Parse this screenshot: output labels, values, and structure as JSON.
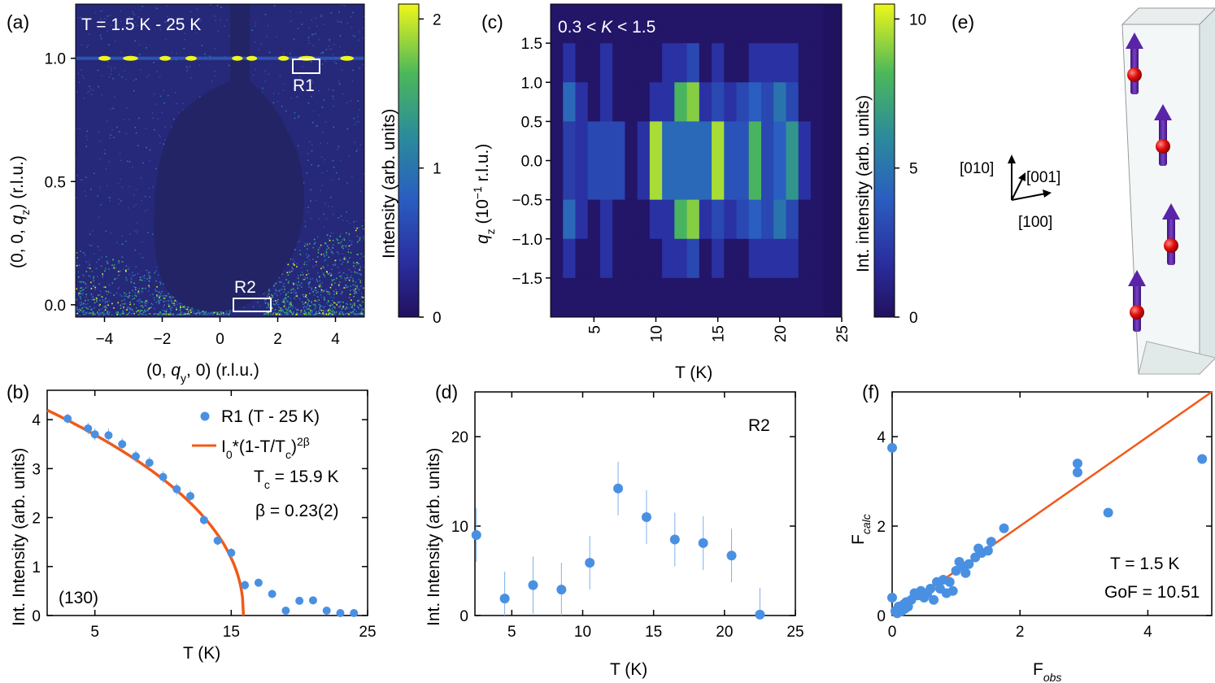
{
  "panels": {
    "a": {
      "label": "(a)",
      "title": "T = 1.5 K - 25 K",
      "xlabel_pre": "(0, ",
      "xlabel_var": "q",
      "xlabel_sub": "y",
      "xlabel_post": ", 0) (r.l.u.)",
      "ylabel_pre": "(0, 0, ",
      "ylabel_var": "q",
      "ylabel_sub": "z",
      "ylabel_post": ") (r.l.u.)",
      "xticks": [
        "−4",
        "−2",
        "0",
        "2",
        "4"
      ],
      "yticks": [
        "0.0",
        "0.5",
        "1.0"
      ],
      "region_labels": [
        "R1",
        "R2"
      ],
      "colorbar_label": "Intensity (arb. units)",
      "colorbar_ticks": [
        "0",
        "1",
        "2"
      ]
    },
    "b": {
      "label": "(b)",
      "xlabel": "T (K)",
      "ylabel": "Int. Intensity (arb. units)",
      "xticks": [
        "5",
        "15",
        "25"
      ],
      "yticks": [
        "0",
        "1",
        "2",
        "3",
        "4"
      ],
      "legend_points": "R1 (T - 25 K)",
      "legend_fit_base": "I",
      "legend_fit_sub": "0",
      "legend_fit_mid": "*(1-T/T",
      "legend_fit_sub2": "c",
      "legend_fit_end": ")",
      "legend_fit_sup": "2β",
      "tc_text": "T",
      "tc_sub": "c",
      "tc_value": " = 15.9 K",
      "beta_text": "β = 0.23(2)",
      "reflection": "(130)"
    },
    "c": {
      "label": "(c)",
      "title_pre": "0.3 < ",
      "title_var": "K",
      "title_post": " < 1.5",
      "xlabel": "T (K)",
      "ylabel_var": "q",
      "ylabel_sub": "z",
      "ylabel_mid": " (10",
      "ylabel_sup": "−1",
      "ylabel_post": " r.l.u.)",
      "xticks": [
        "5",
        "10",
        "15",
        "20",
        "25"
      ],
      "yticks": [
        "1.5",
        "1.0",
        "0.5",
        "0.0",
        "−0.5",
        "−1.0",
        "−1.5"
      ],
      "colorbar_label": "Int. intensity (arb. units)",
      "colorbar_ticks": [
        "0",
        "5",
        "10"
      ]
    },
    "d": {
      "label": "(d)",
      "xlabel": "T (K)",
      "ylabel": "Int. Intensity (arb. units)",
      "xticks": [
        "5",
        "10",
        "15",
        "20",
        "25"
      ],
      "yticks": [
        "0",
        "10",
        "20"
      ],
      "region": "R2"
    },
    "e": {
      "label": "(e)",
      "axes": [
        "[010]",
        "[001]",
        "[100]"
      ]
    },
    "f": {
      "label": "(f)",
      "xlabel_base": "F",
      "xlabel_sub": "obs",
      "ylabel_base": "F",
      "ylabel_sub": "calc",
      "xticks": [
        "0",
        "2",
        "4"
      ],
      "yticks": [
        "0",
        "2",
        "4"
      ],
      "annot1": "T = 1.5 K",
      "annot2": "GoF = 10.51"
    }
  },
  "colors": {
    "points": "#4a90e2",
    "fit": "#f05a1a",
    "map_background": "#26287a",
    "map_hole": "#232466"
  },
  "chart_data": [
    {
      "id": "b",
      "type": "scatter",
      "title": "",
      "xlabel": "T (K)",
      "ylabel": "Int. Intensity (arb. units)",
      "xlim": [
        1.5,
        25
      ],
      "ylim": [
        0,
        4.6
      ],
      "series": [
        {
          "name": "R1 (T - 25 K)",
          "x": [
            3,
            4.5,
            5,
            6,
            7,
            8,
            9,
            10,
            11,
            12,
            13,
            14,
            15,
            16,
            17,
            18,
            19,
            20,
            21,
            22,
            23,
            24
          ],
          "y": [
            4.02,
            3.82,
            3.7,
            3.68,
            3.5,
            3.25,
            3.12,
            2.83,
            2.58,
            2.44,
            1.95,
            1.53,
            1.28,
            0.62,
            0.67,
            0.44,
            0.1,
            0.3,
            0.31,
            0.1,
            0.05,
            0.05
          ],
          "err": [
            0.1,
            0.12,
            0.12,
            0.14,
            0.12,
            0.12,
            0.12,
            0.12,
            0.12,
            0.12,
            0.1,
            0.1,
            0.1,
            0.1,
            0.06,
            0.06,
            0.05,
            0.05,
            0.05,
            0.05,
            0.05,
            0.05
          ]
        }
      ],
      "fit": {
        "name": "I0*(1-T/Tc)^2β",
        "I0": 4.39,
        "Tc": 15.9,
        "beta": 0.23
      }
    },
    {
      "id": "d",
      "type": "scatter",
      "title": "",
      "xlabel": "T (K)",
      "ylabel": "Int. Intensity (arb. units)",
      "xlim": [
        2.4,
        25
      ],
      "ylim": [
        0,
        25
      ],
      "series": [
        {
          "name": "R2",
          "x": [
            2.5,
            4.5,
            6.5,
            8.5,
            10.5,
            12.5,
            14.5,
            16.5,
            18.5,
            20.5,
            22.5
          ],
          "y": [
            9.0,
            1.9,
            3.4,
            2.9,
            5.9,
            14.2,
            11.0,
            8.5,
            8.1,
            6.7,
            0.1
          ],
          "err": [
            3.0,
            3.0,
            3.2,
            3.0,
            3.0,
            3.0,
            3.0,
            3.0,
            3.0,
            3.0,
            3.0
          ]
        }
      ]
    },
    {
      "id": "f",
      "type": "scatter",
      "title": "",
      "xlabel": "F_obs",
      "ylabel": "F_calc",
      "xlim": [
        0,
        5
      ],
      "ylim": [
        0,
        5
      ],
      "series": [
        {
          "name": "reflections",
          "x": [
            0.0,
            0.0,
            0.05,
            0.08,
            0.1,
            0.12,
            0.15,
            0.18,
            0.2,
            0.22,
            0.25,
            0.3,
            0.35,
            0.4,
            0.45,
            0.5,
            0.55,
            0.6,
            0.65,
            0.7,
            0.75,
            0.8,
            0.85,
            0.9,
            0.95,
            1.0,
            1.05,
            1.1,
            1.15,
            1.2,
            1.3,
            1.35,
            1.4,
            1.5,
            1.55,
            1.75,
            2.9,
            2.9,
            3.38,
            4.85
          ],
          "y": [
            3.75,
            0.4,
            0.1,
            0.05,
            0.2,
            0.15,
            0.1,
            0.25,
            0.15,
            0.3,
            0.2,
            0.35,
            0.5,
            0.45,
            0.55,
            0.4,
            0.5,
            0.6,
            0.35,
            0.75,
            0.6,
            0.8,
            0.5,
            0.75,
            0.55,
            1.0,
            1.2,
            1.1,
            0.95,
            1.15,
            1.3,
            1.5,
            1.4,
            1.45,
            1.65,
            1.95,
            3.4,
            3.2,
            2.3,
            3.5
          ]
        }
      ],
      "fit": {
        "name": "y = x",
        "slope": 1.0
      }
    },
    {
      "id": "c",
      "type": "heatmap",
      "title": "0.3 < K < 1.5",
      "xlabel": "T (K)",
      "ylabel": "q_z (10^-1 r.l.u.)",
      "xlim": [
        1.5,
        25
      ],
      "ylim": [
        -2.0,
        2.0
      ],
      "zlim": [
        0,
        10.5
      ],
      "x_centers": [
        2,
        3,
        4,
        5,
        6,
        7,
        8,
        9,
        10,
        11,
        12,
        13,
        14,
        15,
        16,
        17,
        18,
        19,
        20,
        21,
        22,
        23
      ],
      "y_centers": [
        1.75,
        1.25,
        0.75,
        0.25,
        -0.25,
        -0.75,
        -1.25,
        -1.75
      ],
      "values": [
        [
          0.3,
          0.3,
          0.3,
          0.3,
          0.3,
          0.3,
          0.3,
          0.3,
          0.3,
          0.3,
          0.3,
          0.3,
          0.3,
          0.3,
          0.3,
          0.3,
          0.3,
          0.3,
          0.3,
          0.3,
          0.3,
          0.3
        ],
        [
          0.3,
          2.0,
          0.3,
          0.3,
          2.0,
          0.3,
          0.3,
          0.3,
          0.3,
          2.0,
          2.0,
          3.0,
          0.3,
          2.0,
          0.3,
          0.3,
          2.0,
          2.0,
          2.0,
          2.0,
          0.3,
          0.3
        ],
        [
          0.3,
          4.5,
          2.0,
          0.3,
          2.0,
          0.3,
          0.3,
          0.3,
          2.0,
          2.0,
          8.0,
          9.0,
          2.0,
          3.0,
          2.0,
          3.0,
          4.0,
          3.0,
          5.0,
          3.0,
          0.3,
          0.3
        ],
        [
          0.3,
          2.5,
          2.0,
          3.0,
          3.0,
          3.0,
          0.3,
          2.0,
          9.5,
          4.5,
          4.5,
          4.5,
          4.5,
          9.5,
          3.5,
          3.5,
          8.0,
          3.0,
          4.0,
          6.5,
          2.0,
          0.3
        ],
        [
          0.3,
          2.5,
          2.0,
          3.0,
          3.0,
          3.0,
          0.3,
          2.0,
          9.5,
          4.5,
          4.5,
          4.5,
          4.5,
          9.5,
          3.5,
          3.5,
          8.0,
          3.0,
          4.0,
          6.5,
          2.0,
          0.3
        ],
        [
          0.3,
          4.5,
          2.0,
          0.3,
          2.0,
          0.3,
          0.3,
          0.3,
          2.0,
          2.0,
          8.0,
          9.0,
          2.0,
          3.0,
          2.0,
          3.0,
          4.0,
          3.0,
          5.0,
          3.0,
          0.3,
          0.3
        ],
        [
          0.3,
          2.0,
          0.3,
          0.3,
          2.0,
          0.3,
          0.3,
          0.3,
          0.3,
          2.0,
          2.0,
          3.0,
          0.3,
          2.0,
          0.3,
          0.3,
          2.0,
          2.0,
          2.0,
          2.0,
          0.3,
          0.3
        ],
        [
          0.3,
          0.3,
          0.3,
          0.3,
          0.3,
          0.3,
          0.3,
          0.3,
          0.3,
          0.3,
          0.3,
          0.3,
          0.3,
          0.3,
          0.3,
          0.3,
          0.3,
          0.3,
          0.3,
          0.3,
          0.3,
          0.3
        ]
      ]
    },
    {
      "id": "a",
      "type": "heatmap",
      "title": "T = 1.5 K - 25 K",
      "xlabel": "(0, q_y, 0) (r.l.u.)",
      "ylabel": "(0, 0, q_z) (r.l.u.)",
      "xlim": [
        -5,
        5
      ],
      "ylim": [
        -0.05,
        1.22
      ],
      "zlim": [
        0,
        2.1
      ],
      "regions": [
        {
          "name": "R1",
          "x_range": [
            2.6,
            3.5
          ],
          "y_range": [
            0.98,
            1.03
          ]
        },
        {
          "name": "R2",
          "x_range": [
            0.5,
            1.8
          ],
          "y_range": [
            -0.02,
            0.03
          ]
        }
      ]
    }
  ]
}
